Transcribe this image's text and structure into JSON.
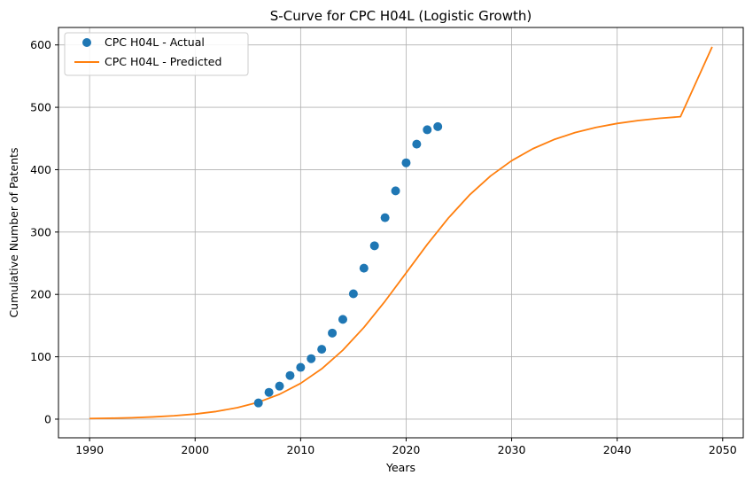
{
  "chart_data": {
    "type": "line",
    "title": "S-Curve for CPC H04L (Logistic Growth)",
    "xlabel": "Years",
    "ylabel": "Cumulative Number of Patents",
    "xlim": [
      1987.05,
      2051.95
    ],
    "ylim": [
      -29.9,
      628.0
    ],
    "xticks": [
      1990,
      2000,
      2010,
      2020,
      2030,
      2040,
      2050
    ],
    "yticks": [
      0,
      100,
      200,
      300,
      400,
      500,
      600
    ],
    "grid": true,
    "legend_position": "top-left",
    "series": [
      {
        "name": "CPC H04L - Actual",
        "kind": "scatter",
        "color": "#1f77b4",
        "x": [
          2006,
          2007,
          2008,
          2009,
          2010,
          2011,
          2012,
          2013,
          2014,
          2015,
          2016,
          2017,
          2018,
          2019,
          2020,
          2021,
          2022,
          2023
        ],
        "y": [
          26,
          43,
          53,
          70,
          83,
          97,
          112,
          138,
          160,
          201,
          242,
          278,
          323,
          366,
          411,
          441,
          464,
          469
        ]
      },
      {
        "name": "CPC H04L - Predicted",
        "kind": "line",
        "color": "#ff7f0e",
        "x": [
          1990,
          1992,
          1994,
          1996,
          1998,
          2000,
          2002,
          2004,
          2006,
          2008,
          2010,
          2012,
          2014,
          2016,
          2018,
          2020,
          2022,
          2024,
          2026,
          2028,
          2030,
          2032,
          2034,
          2036,
          2038,
          2040,
          2042,
          2044,
          2046,
          2049
        ],
        "y": [
          1,
          1.5,
          2.3,
          3.6,
          5.5,
          8.2,
          12.3,
          18.4,
          27.2,
          39.9,
          57.4,
          80.7,
          110.6,
          147.1,
          189.1,
          234.5,
          280.1,
          322.4,
          359.3,
          389.9,
          414.4,
          433.5,
          448.2,
          459.4,
          467.8,
          474.1,
          478.8,
          482.3,
          485,
          597
        ]
      }
    ]
  }
}
